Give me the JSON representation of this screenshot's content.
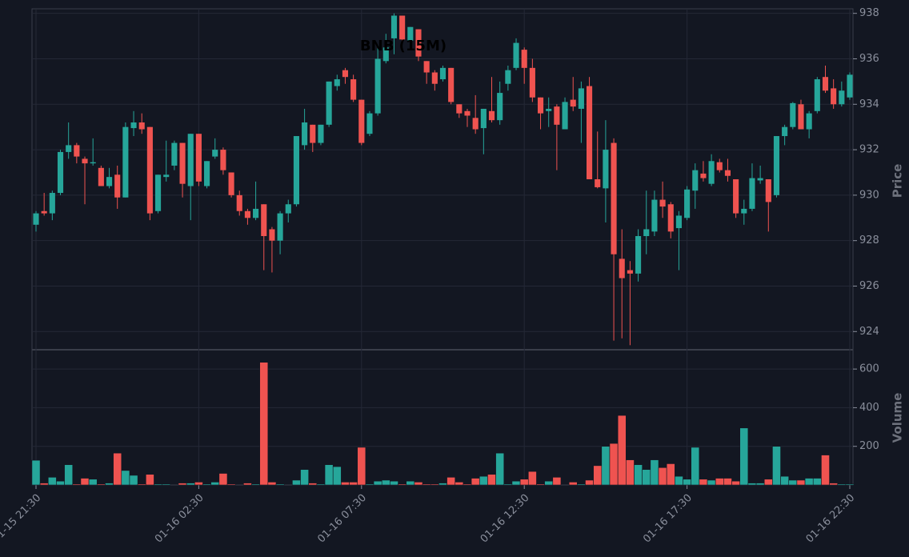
{
  "chart_data": {
    "type": "candlestick",
    "title": "BNB (15M)",
    "y_label": "Price",
    "up_color": "#26a69a",
    "down_color": "#ef5350",
    "grid": true,
    "categories": [
      "01-15 21:30",
      null,
      null,
      null,
      null,
      null,
      null,
      null,
      null,
      null,
      null,
      null,
      null,
      null,
      null,
      null,
      null,
      null,
      null,
      null,
      "01-16 02:30",
      null,
      null,
      null,
      null,
      null,
      null,
      null,
      null,
      null,
      null,
      null,
      null,
      null,
      null,
      null,
      null,
      null,
      null,
      null,
      "01-16 07:30",
      null,
      null,
      null,
      null,
      null,
      null,
      null,
      null,
      null,
      null,
      null,
      null,
      null,
      null,
      null,
      null,
      null,
      null,
      null,
      "01-16 12:30",
      null,
      null,
      null,
      null,
      null,
      null,
      null,
      null,
      null,
      null,
      null,
      null,
      null,
      null,
      null,
      null,
      null,
      null,
      null,
      "01-16 17:30",
      null,
      null,
      null,
      null,
      null,
      null,
      null,
      null,
      null,
      null,
      null,
      null,
      null,
      null,
      null,
      null,
      null,
      null,
      null,
      "01-16 22:30"
    ],
    "open": [
      928.7,
      929.3,
      929.2,
      930.1,
      931.9,
      932.2,
      931.6,
      931.4,
      931.2,
      930.4,
      930.9,
      929.9,
      932.95,
      933.2,
      933.0,
      929.3,
      930.8,
      931.3,
      932.3,
      930.4,
      932.7,
      930.4,
      931.7,
      932.0,
      931.0,
      930.0,
      929.3,
      929.0,
      929.6,
      928.5,
      928.0,
      929.2,
      929.6,
      932.2,
      933.1,
      932.3,
      933.1,
      934.8,
      935.5,
      935.1,
      934.2,
      932.7,
      933.6,
      935.9,
      936.9,
      937.9,
      936.8,
      937.3,
      935.9,
      935.4,
      935.1,
      935.6,
      934.0,
      933.7,
      933.4,
      932.95,
      933.7,
      933.3,
      934.9,
      935.6,
      936.4,
      935.6,
      934.3,
      933.7,
      933.9,
      932.9,
      934.2,
      933.8,
      934.8,
      930.7,
      930.3,
      932.3,
      927.2,
      926.7,
      926.55,
      928.2,
      928.4,
      929.8,
      929.6,
      928.55,
      929.0,
      930.2,
      930.95,
      930.5,
      931.45,
      931.1,
      930.7,
      929.2,
      929.4,
      930.65,
      930.7,
      930.0,
      932.6,
      933.0,
      934.0,
      932.9,
      933.7,
      935.2,
      934.7,
      934.0,
      934.3
    ],
    "high": [
      929.3,
      930.1,
      930.2,
      932.0,
      933.2,
      932.3,
      931.7,
      932.5,
      931.3,
      931.2,
      931.3,
      933.2,
      933.7,
      933.6,
      933.0,
      930.9,
      932.4,
      932.4,
      932.3,
      932.7,
      932.7,
      931.5,
      932.5,
      932.1,
      931.0,
      930.2,
      929.4,
      930.6,
      929.6,
      928.6,
      929.3,
      929.8,
      932.6,
      933.8,
      933.1,
      933.1,
      935.0,
      935.3,
      935.6,
      935.3,
      934.2,
      933.7,
      936.6,
      937.1,
      938.0,
      937.9,
      937.4,
      937.3,
      935.9,
      935.5,
      935.7,
      935.6,
      934.0,
      933.8,
      934.4,
      933.8,
      935.2,
      935.0,
      935.7,
      936.9,
      936.5,
      936.0,
      934.3,
      934.3,
      934.0,
      934.3,
      935.2,
      935.0,
      935.2,
      932.8,
      933.3,
      932.5,
      928.5,
      927.1,
      928.5,
      930.2,
      930.2,
      930.6,
      929.7,
      929.3,
      930.4,
      931.4,
      931.5,
      931.8,
      931.6,
      931.6,
      930.7,
      929.8,
      931.4,
      931.3,
      930.7,
      932.6,
      933.1,
      934.1,
      934.2,
      933.7,
      935.2,
      935.7,
      935.1,
      935.0,
      935.4
    ],
    "low": [
      928.4,
      929.1,
      928.9,
      930.0,
      931.6,
      931.4,
      929.6,
      931.3,
      930.4,
      930.3,
      929.4,
      929.9,
      932.6,
      932.7,
      928.9,
      929.2,
      930.6,
      931.1,
      929.9,
      928.9,
      930.4,
      930.3,
      931.6,
      930.9,
      929.9,
      929.1,
      928.7,
      928.9,
      926.7,
      926.6,
      927.4,
      928.8,
      929.5,
      932.0,
      931.9,
      932.2,
      933.0,
      934.6,
      934.9,
      934.1,
      932.2,
      932.6,
      933.5,
      935.8,
      936.2,
      936.7,
      936.6,
      935.9,
      934.9,
      934.6,
      935.0,
      934.0,
      933.4,
      933.0,
      932.7,
      931.8,
      933.2,
      933.1,
      934.6,
      935.5,
      934.9,
      934.1,
      932.9,
      933.0,
      931.1,
      932.9,
      933.7,
      932.3,
      930.7,
      930.3,
      928.8,
      923.6,
      923.7,
      923.4,
      926.2,
      927.4,
      928.2,
      929.0,
      928.1,
      926.7,
      928.9,
      929.4,
      930.6,
      930.4,
      931.0,
      930.6,
      929.0,
      928.7,
      929.3,
      930.5,
      928.4,
      929.9,
      932.2,
      932.9,
      932.9,
      932.5,
      933.6,
      934.5,
      933.8,
      933.9,
      934.2
    ],
    "close": [
      929.2,
      929.2,
      930.1,
      931.9,
      932.2,
      931.7,
      931.4,
      931.45,
      930.4,
      930.8,
      929.9,
      933.0,
      933.2,
      932.9,
      929.2,
      930.9,
      930.9,
      932.3,
      930.5,
      932.7,
      930.6,
      931.5,
      932.0,
      931.1,
      930.0,
      929.3,
      929.0,
      929.4,
      928.2,
      928.0,
      929.2,
      929.6,
      932.6,
      933.2,
      932.3,
      933.1,
      935.0,
      935.1,
      935.2,
      934.2,
      932.3,
      933.6,
      936.0,
      936.5,
      937.9,
      936.85,
      937.4,
      936.1,
      935.4,
      934.9,
      935.6,
      934.1,
      933.6,
      933.5,
      932.9,
      933.8,
      933.3,
      934.5,
      935.5,
      936.7,
      935.6,
      934.3,
      933.6,
      933.8,
      933.1,
      934.1,
      933.9,
      934.7,
      930.7,
      930.35,
      932.0,
      927.4,
      926.35,
      926.55,
      928.2,
      928.5,
      929.8,
      929.5,
      928.4,
      929.1,
      930.25,
      931.1,
      930.75,
      931.5,
      931.1,
      930.85,
      929.2,
      929.4,
      930.75,
      930.75,
      929.7,
      932.6,
      933.0,
      934.05,
      932.9,
      933.6,
      935.1,
      934.6,
      934.0,
      934.6,
      935.3
    ],
    "ylim": [
      923.2,
      938.2
    ],
    "yticks": [
      924,
      926,
      928,
      930,
      932,
      934,
      936,
      938
    ],
    "volume": {
      "label": "Volume",
      "ylim": [
        0,
        700
      ],
      "yticks": [
        200,
        400,
        600
      ],
      "values": [
        128,
        10,
        40,
        20,
        105,
        5,
        35,
        30,
        5,
        10,
        165,
        75,
        50,
        5,
        55,
        5,
        5,
        0,
        10,
        10,
        15,
        5,
        15,
        60,
        5,
        0,
        10,
        5,
        635,
        15,
        5,
        0,
        25,
        80,
        10,
        5,
        105,
        95,
        15,
        15,
        195,
        5,
        20,
        25,
        20,
        5,
        20,
        15,
        5,
        5,
        10,
        40,
        15,
        5,
        35,
        45,
        55,
        165,
        5,
        20,
        30,
        70,
        5,
        20,
        40,
        0,
        15,
        5,
        25,
        100,
        200,
        215,
        360,
        130,
        105,
        80,
        130,
        90,
        110,
        45,
        30,
        195,
        30,
        25,
        35,
        35,
        20,
        295,
        10,
        10,
        30,
        200,
        45,
        25,
        25,
        35,
        35,
        155,
        10,
        5,
        5
      ]
    }
  }
}
